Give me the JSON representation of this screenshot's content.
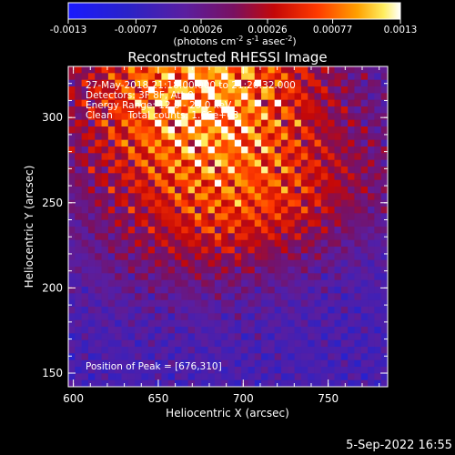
{
  "colorbar": {
    "tick_labels": [
      "-0.0013",
      "-0.00077",
      "-0.00026",
      "0.00026",
      "0.00077",
      "0.0013"
    ],
    "units": {
      "base": "(photons cm",
      "exp1": "-2",
      "mid": " s",
      "exp2": "-1",
      "mid2": " asec",
      "exp3": "-2",
      "end": ")"
    },
    "colormap": "blue-purple-red-orange-yellow-white (RHESSI color table)"
  },
  "chart_data": {
    "type": "heatmap",
    "title": "Reconstructed RHESSI Image",
    "xlabel": "Heliocentric X (arcsec)",
    "ylabel": "Heliocentric Y (arcsec)",
    "x_ticks": [
      "600",
      "650",
      "700",
      "750"
    ],
    "y_ticks": [
      "150",
      "200",
      "250",
      "300"
    ],
    "xlim": [
      597,
      785
    ],
    "ylim": [
      142,
      330
    ],
    "value_range": [
      -0.0013,
      0.0013
    ],
    "grid": false,
    "peak": [
      676,
      310
    ],
    "annotations": {
      "time_range": "27-May-2018 21:18:00.000 to 21:20:32.000",
      "detectors": "Detectors: 3F 8F, Att 0",
      "energy": "Energy Range: 12.0 - 25.0 keV",
      "clean": "Clean     Total counts: 1.66e+03",
      "peak_label": "Position of Peak = [676,310]"
    }
  },
  "footer": {
    "timestamp": "5-Sep-2022 16:55"
  }
}
